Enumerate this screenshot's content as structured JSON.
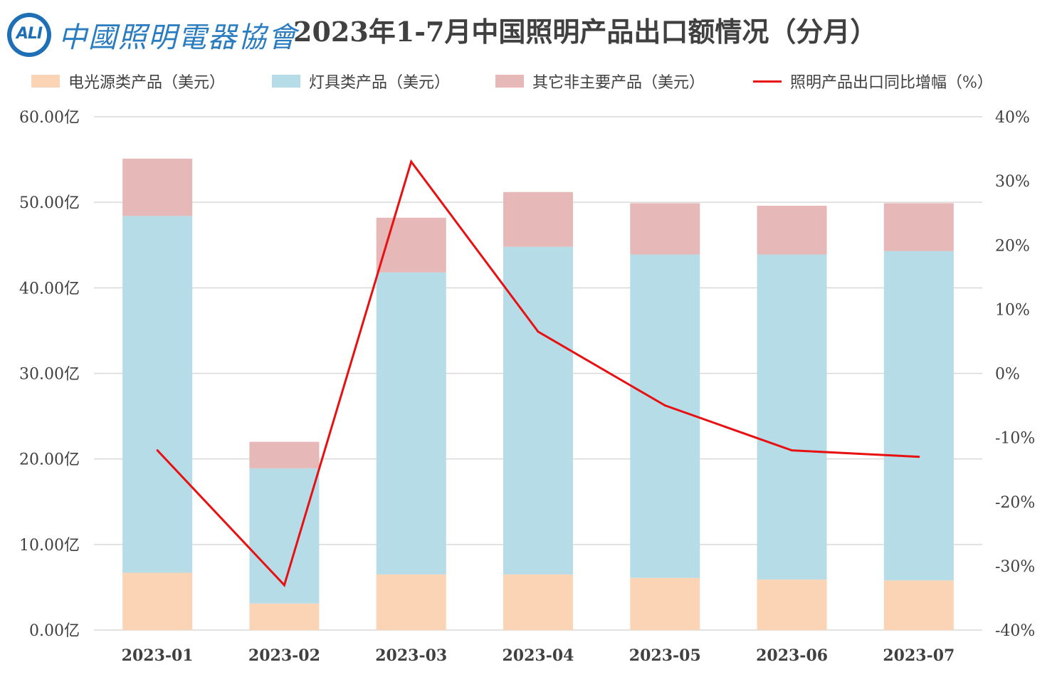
{
  "header": {
    "logo_mark": "ALI",
    "logo_name": "中國照明電器協會",
    "title": "2023年1-7月中国照明产品出口额情况（分月）"
  },
  "colors": {
    "light_source": "#fad4b4",
    "luminaire": "#b6dce8",
    "other": "#e6b8b8",
    "yoy_line": "#e81010",
    "grid": "#d9d9d9"
  },
  "chart_data": {
    "type": "bar",
    "stacked": true,
    "categories": [
      "2023-01",
      "2023-02",
      "2023-03",
      "2023-04",
      "2023-05",
      "2023-06",
      "2023-07"
    ],
    "series": [
      {
        "name": "电光源类产品（美元）",
        "color_key": "light_source",
        "values": [
          6.7,
          3.1,
          6.5,
          6.5,
          6.1,
          5.9,
          5.8
        ]
      },
      {
        "name": "灯具类产品（美元）",
        "color_key": "luminaire",
        "values": [
          41.7,
          15.8,
          35.3,
          38.3,
          37.8,
          38.0,
          38.5
        ]
      },
      {
        "name": "其它非主要产品（美元）",
        "color_key": "other",
        "values": [
          6.7,
          3.1,
          6.4,
          6.4,
          6.0,
          5.7,
          5.6
        ]
      }
    ],
    "line_series": {
      "name": "照明产品出口同比增幅（%）",
      "color_key": "yoy_line",
      "axis": "right",
      "values": [
        -12,
        -33,
        33,
        6.5,
        -5,
        -12,
        -13
      ]
    },
    "y_left": {
      "ylim": [
        0,
        60
      ],
      "ticks": [
        "0.00亿",
        "10.00亿",
        "20.00亿",
        "30.00亿",
        "40.00亿",
        "50.00亿",
        "60.00亿"
      ],
      "tick_values": [
        0,
        10,
        20,
        30,
        40,
        50,
        60
      ]
    },
    "y_right": {
      "ylim": [
        -40,
        40
      ],
      "ticks": [
        "-40%",
        "-30%",
        "-20%",
        "-10%",
        "0%",
        "10%",
        "20%",
        "30%",
        "40%"
      ],
      "tick_values": [
        -40,
        -30,
        -20,
        -10,
        0,
        10,
        20,
        30,
        40
      ]
    },
    "grid": true,
    "legend_position": "top"
  }
}
